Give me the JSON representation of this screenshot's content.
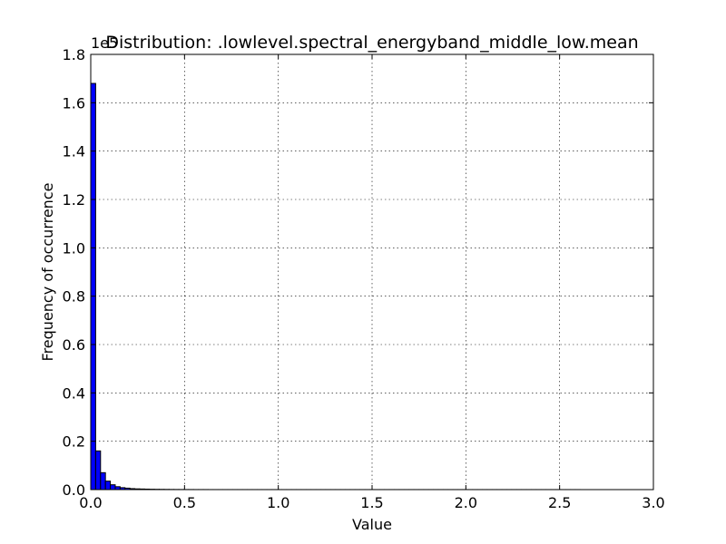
{
  "chart_data": {
    "type": "bar",
    "title": "Distribution: .lowlevel.spectral_energyband_middle_low.mean",
    "xlabel": "Value",
    "ylabel": "Frequency of occurrence",
    "y_offset_label": "1e5",
    "xlim": [
      0.0,
      3.0
    ],
    "ylim": [
      0.0,
      1.8
    ],
    "xticks": [
      "0.0",
      "0.5",
      "1.0",
      "1.5",
      "2.0",
      "2.5",
      "3.0"
    ],
    "yticks": [
      "0.0",
      "0.2",
      "0.4",
      "0.6",
      "0.8",
      "1.0",
      "1.2",
      "1.4",
      "1.6",
      "1.8"
    ],
    "grid": true,
    "bin_width": 0.0261,
    "bin_start": 0.0,
    "values": [
      1.68,
      0.16,
      0.07,
      0.035,
      0.02,
      0.012,
      0.008,
      0.006,
      0.004,
      0.003,
      0.0025,
      0.002,
      0.0015,
      0.0012,
      0.001,
      0.0008,
      0.0006,
      0.0005,
      0.0004,
      0.0003,
      0.0003,
      0.0002,
      0.0002,
      0.0002,
      0.0001,
      0.0001,
      0.0001,
      0.0001,
      0.0001,
      0.0001,
      0.0001,
      0.0001,
      0.0001,
      0.0001,
      0.0001,
      0.0001,
      0.0001,
      0.0001,
      0.0001,
      0.0001,
      0.0001,
      0.0001,
      0.0001,
      0.0001,
      0.0001,
      0.0001,
      0.0001,
      0.0001,
      0.0001,
      0.0001,
      0.0001,
      0.0001,
      0.0001,
      0.0001,
      0.0001,
      0.0001,
      0.0001,
      0.0001,
      0.0001,
      0.0001,
      0.0001,
      0.0001,
      0.0001,
      0.0001,
      0.0001,
      0.0001,
      0.0001,
      0.0001,
      0.0001,
      0.0001,
      0.0001,
      0.0001,
      0.0001,
      0.0001,
      0.0001,
      0.0001,
      0.0001,
      0.0001,
      0.0001,
      0.0001,
      0.0001,
      0.0001,
      0.0001,
      0.0001,
      0.0001,
      0.0001,
      0.0001,
      0.0001,
      0.0001,
      0.0001,
      0.0001,
      0.0001,
      0.0001,
      0.0001,
      0.0001,
      0.0001,
      0.0001,
      0.0001,
      0.0001,
      0.0001
    ],
    "bar_color": "#0000ff"
  }
}
